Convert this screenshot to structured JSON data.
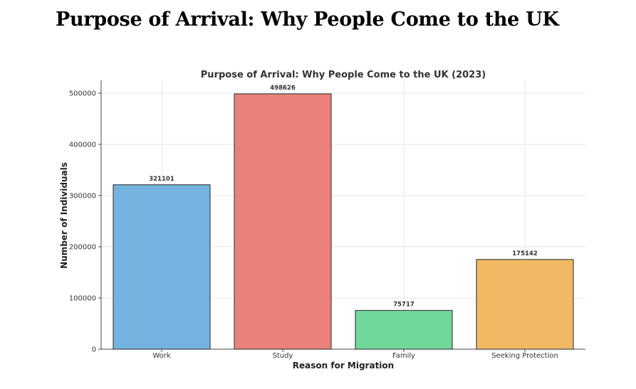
{
  "page": {
    "heading": "Purpose of Arrival: Why People Come to the UK"
  },
  "chart_data": {
    "type": "bar",
    "title": "Purpose of Arrival: Why People Come to the UK (2023)",
    "xlabel": "Reason for Migration",
    "ylabel": "Number of Individuals",
    "categories": [
      "Work",
      "Study",
      "Family",
      "Seeking Protection"
    ],
    "values": [
      321101,
      498626,
      75717,
      175142
    ],
    "data_labels": [
      "321101",
      "498626",
      "75717",
      "175142"
    ],
    "colors": [
      "#74b3e0",
      "#ea817a",
      "#6fd89a",
      "#f3b863"
    ],
    "ylim": [
      0,
      525000
    ],
    "yticks": [
      0,
      100000,
      200000,
      300000,
      400000,
      500000
    ],
    "ytick_labels": [
      "0",
      "100000",
      "200000",
      "300000",
      "400000",
      "500000"
    ],
    "grid": true,
    "legend": "none"
  }
}
